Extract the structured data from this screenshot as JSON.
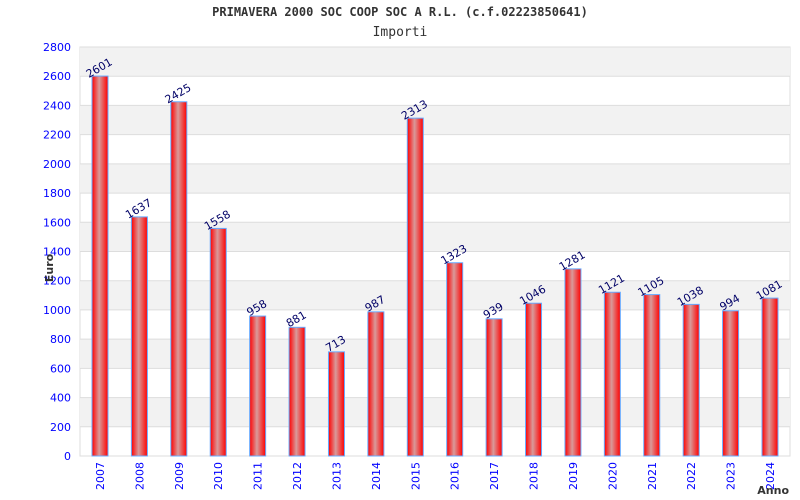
{
  "chart_data": {
    "type": "bar",
    "title": "PRIMAVERA 2000 SOC COOP SOC A R.L. (c.f.02223850641)",
    "subtitle": "Importi",
    "xlabel": "Anno",
    "ylabel": "Euro",
    "ylim": [
      0,
      2800
    ],
    "yticks": [
      0,
      200,
      400,
      600,
      800,
      1000,
      1200,
      1400,
      1600,
      1800,
      2000,
      2200,
      2400,
      2600,
      2800
    ],
    "categories": [
      "2007",
      "2008",
      "2009",
      "2010",
      "2011",
      "2012",
      "2013",
      "2014",
      "2015",
      "2016",
      "2017",
      "2018",
      "2019",
      "2020",
      "2021",
      "2022",
      "2023",
      "2024"
    ],
    "values": [
      2601,
      1637,
      2425,
      1558,
      958,
      881,
      713,
      987,
      2313,
      1323,
      939,
      1046,
      1281,
      1121,
      1105,
      1038,
      994,
      1081
    ],
    "grid": true,
    "colors": {
      "bar": "#ff0000",
      "bar_highlight": "#d99a9a",
      "bar_border": "#66aaff",
      "tick": "#0000ff",
      "label": "#000066",
      "band": "#f2f2f2",
      "grid": "#dddddd"
    }
  }
}
